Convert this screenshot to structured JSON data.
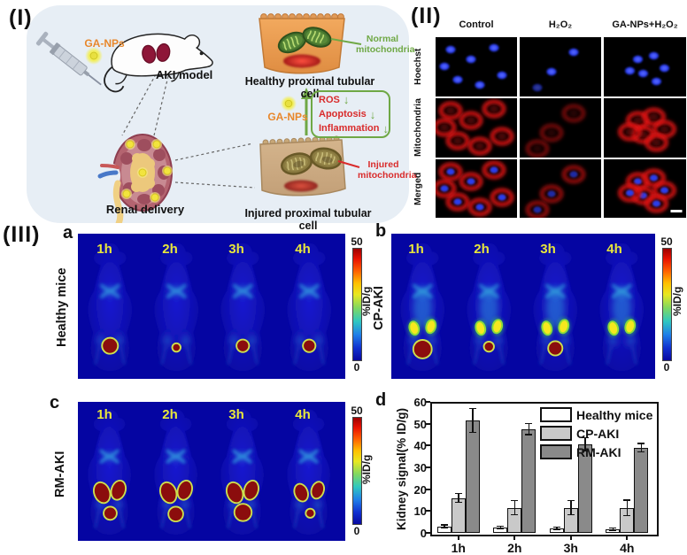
{
  "panel_I": {
    "label": "(I)",
    "syringe_label": "GA-NPs",
    "aki_model": "AKI model",
    "renal_delivery": "Renal delivery",
    "healthy_cell": "Healthy proximal tubular cell",
    "injured_cell": "Injured proximal tubular cell",
    "normal_mitochondria": "Normal mitochondria",
    "injured_mitochondria": "Injured mitochondria",
    "ga_nps": "GA-NPs",
    "down_arrow": "↓",
    "effects": [
      "ROS",
      "Apoptosis",
      "Inflammation"
    ]
  },
  "panel_II": {
    "label": "(II)",
    "columns": [
      "Control",
      "H₂O₂",
      "GA-NPs+H₂O₂"
    ],
    "rows": [
      "Hoechst",
      "Mitochondria",
      "Merged"
    ]
  },
  "panel_III": {
    "label": "(III)",
    "subpanels": {
      "a": {
        "label": "a",
        "group": "Healthy mice"
      },
      "b": {
        "label": "b",
        "group": "CP-AKI"
      },
      "c": {
        "label": "c",
        "group": "RM-AKI"
      }
    },
    "timepoints": [
      "1h",
      "2h",
      "3h",
      "4h"
    ],
    "colorbar": {
      "max": "50",
      "min": "0",
      "unit": "%ID/g"
    }
  },
  "panel_d_label": "d",
  "chart_data": {
    "type": "bar",
    "categories": [
      "1h",
      "2h",
      "3h",
      "4h"
    ],
    "series": [
      {
        "name": "Healthy mice",
        "color": "#ffffff",
        "values": [
          3.0,
          2.5,
          2.2,
          1.8
        ],
        "errors": [
          0.6,
          0.5,
          0.5,
          0.5
        ]
      },
      {
        "name": "CP-AKI",
        "color": "#c9c9c9",
        "values": [
          16.0,
          11.5,
          11.5,
          11.5
        ],
        "errors": [
          2.0,
          3.2,
          3.2,
          3.5
        ]
      },
      {
        "name": "RM-AKI",
        "color": "#8a8a8a",
        "values": [
          51.5,
          47.5,
          40.5,
          39.0
        ],
        "errors": [
          5.5,
          2.5,
          3.0,
          2.0
        ]
      }
    ],
    "ylabel": "Kidney signal(% ID/g)",
    "ylim": [
      0,
      60
    ],
    "yticks": [
      0,
      10,
      20,
      30,
      40,
      50,
      60
    ],
    "legend_position": "top-right",
    "grid": false
  },
  "colors": {
    "panel1_bg": "#e7eef5",
    "accent_orange": "#e8872b",
    "accent_green": "#6fa845",
    "accent_red": "#d92b2b",
    "nirf_bg": "#0505a2",
    "timepoint_yellow": "#e8e73c",
    "hotspot_red": "#8b0d0d"
  }
}
